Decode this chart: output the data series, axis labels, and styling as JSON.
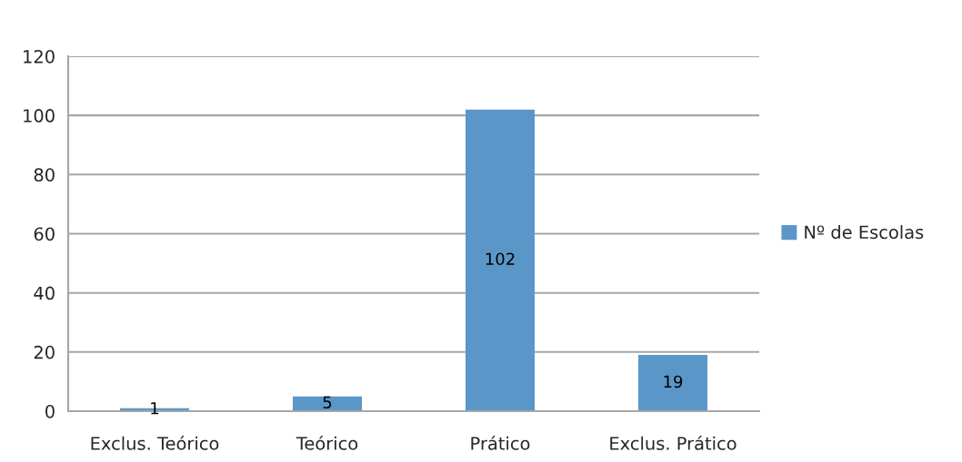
{
  "chart_data": {
    "type": "bar",
    "categories": [
      "Exclus. Teórico",
      "Teórico",
      "Prático",
      "Exclus. Prático"
    ],
    "series": [
      {
        "name": "Nº de Escolas",
        "color": "#5b96c9",
        "values": [
          1,
          5,
          102,
          19
        ]
      }
    ],
    "ylim": [
      0,
      120
    ],
    "yticks": [
      0,
      20,
      40,
      60,
      80,
      100,
      120
    ],
    "grid": "y",
    "legend": "right",
    "data_labels": true
  }
}
